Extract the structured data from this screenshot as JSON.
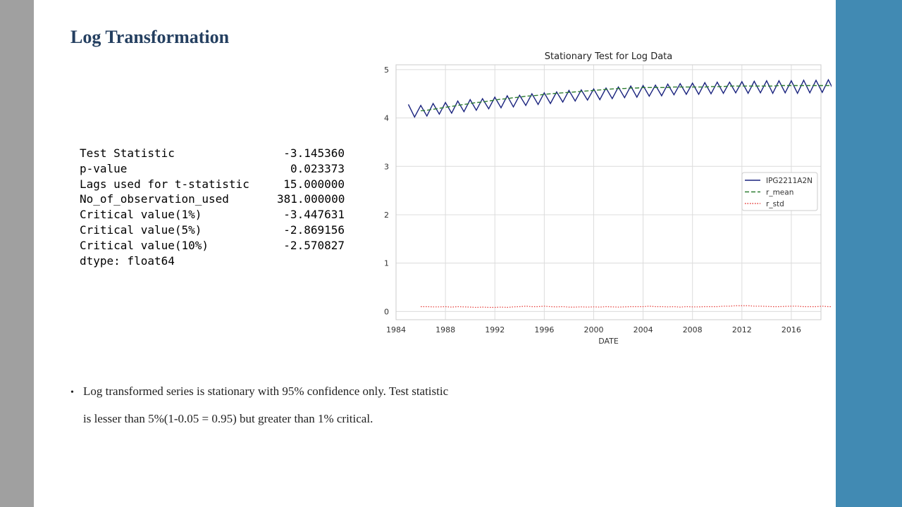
{
  "slide": {
    "title": "Log Transformation",
    "bullet_line1": "Log transformed  series is stationary with 95% confidence only.  Test statistic",
    "bullet_line2": "is lesser than  5%(1-0.05 = 0.95) but greater than  1% critical.",
    "colors": {
      "left_band": "#a0a0a0",
      "right_band": "#418ab3",
      "title": "#243f60"
    }
  },
  "stats": {
    "rows": [
      {
        "label": "Test Statistic",
        "value": "-3.145360"
      },
      {
        "label": "p-value",
        "value": "0.023373"
      },
      {
        "label": "Lags used for t-statistic",
        "value": "15.000000"
      },
      {
        "label": "No_of_observation_used",
        "value": "381.000000"
      },
      {
        "label": "Critical value(1%)",
        "value": "-3.447631"
      },
      {
        "label": "Critical value(5%)",
        "value": "-2.869156"
      },
      {
        "label": "Critical value(10%)",
        "value": "-2.570827"
      }
    ],
    "dtype": "dtype: float64"
  },
  "chart_data": {
    "type": "line",
    "title": "Stationary Test for Log Data",
    "xlabel": "DATE",
    "ylabel": "",
    "xlim": [
      1984.0,
      2018.4
    ],
    "ylim": [
      -0.17,
      5.1
    ],
    "grid": true,
    "legend_position": "center-right",
    "x_ticks": [
      1984,
      1988,
      1992,
      1996,
      2000,
      2004,
      2008,
      2012,
      2016
    ],
    "y_ticks": [
      0,
      1,
      2,
      3,
      4,
      5
    ],
    "series": [
      {
        "name": "IPG2211A2N",
        "color": "#1a237e",
        "style": "solid",
        "x_start": 1985.0,
        "x_step": 0.5,
        "values": [
          4.28,
          4.02,
          4.26,
          4.04,
          4.3,
          4.08,
          4.32,
          4.1,
          4.35,
          4.13,
          4.38,
          4.16,
          4.4,
          4.19,
          4.43,
          4.21,
          4.46,
          4.23,
          4.47,
          4.26,
          4.5,
          4.28,
          4.52,
          4.3,
          4.54,
          4.33,
          4.57,
          4.35,
          4.58,
          4.37,
          4.6,
          4.38,
          4.62,
          4.4,
          4.64,
          4.42,
          4.66,
          4.43,
          4.67,
          4.45,
          4.68,
          4.46,
          4.7,
          4.48,
          4.71,
          4.49,
          4.72,
          4.49,
          4.73,
          4.5,
          4.74,
          4.51,
          4.74,
          4.52,
          4.75,
          4.51,
          4.76,
          4.52,
          4.77,
          4.51,
          4.77,
          4.52,
          4.77,
          4.51,
          4.78,
          4.52,
          4.78,
          4.53,
          4.79,
          4.53,
          4.8
        ]
      },
      {
        "name": "r_mean",
        "color": "#2e7d32",
        "style": "dashed",
        "x_start": 1986.0,
        "x_step": 0.5,
        "values": [
          4.15,
          4.16,
          4.18,
          4.2,
          4.22,
          4.24,
          4.26,
          4.28,
          4.3,
          4.32,
          4.33,
          4.35,
          4.37,
          4.39,
          4.4,
          4.42,
          4.43,
          4.45,
          4.46,
          4.47,
          4.49,
          4.5,
          4.51,
          4.52,
          4.53,
          4.54,
          4.55,
          4.56,
          4.57,
          4.58,
          4.59,
          4.6,
          4.61,
          4.61,
          4.62,
          4.62,
          4.63,
          4.63,
          4.63,
          4.63,
          4.63,
          4.64,
          4.64,
          4.64,
          4.64,
          4.64,
          4.64,
          4.65,
          4.65,
          4.65,
          4.66,
          4.66,
          4.66,
          4.66,
          4.66,
          4.66,
          4.66,
          4.66,
          4.67,
          4.67,
          4.67,
          4.67,
          4.67,
          4.67,
          4.67,
          4.67,
          4.67,
          4.67,
          4.67
        ]
      },
      {
        "name": "r_std",
        "color": "#e53935",
        "style": "dotted",
        "x_start": 1986.0,
        "x_step": 0.5,
        "values": [
          0.1,
          0.1,
          0.095,
          0.095,
          0.1,
          0.09,
          0.1,
          0.095,
          0.09,
          0.085,
          0.09,
          0.085,
          0.085,
          0.09,
          0.085,
          0.095,
          0.1,
          0.11,
          0.1,
          0.1,
          0.11,
          0.1,
          0.095,
          0.1,
          0.09,
          0.09,
          0.095,
          0.09,
          0.095,
          0.09,
          0.1,
          0.095,
          0.09,
          0.095,
          0.1,
          0.1,
          0.1,
          0.11,
          0.1,
          0.1,
          0.095,
          0.1,
          0.09,
          0.1,
          0.095,
          0.095,
          0.1,
          0.1,
          0.1,
          0.11,
          0.11,
          0.12,
          0.12,
          0.12,
          0.11,
          0.11,
          0.105,
          0.1,
          0.1,
          0.105,
          0.11,
          0.11,
          0.1,
          0.1,
          0.1,
          0.11,
          0.1,
          0.1,
          0.09
        ]
      }
    ]
  }
}
